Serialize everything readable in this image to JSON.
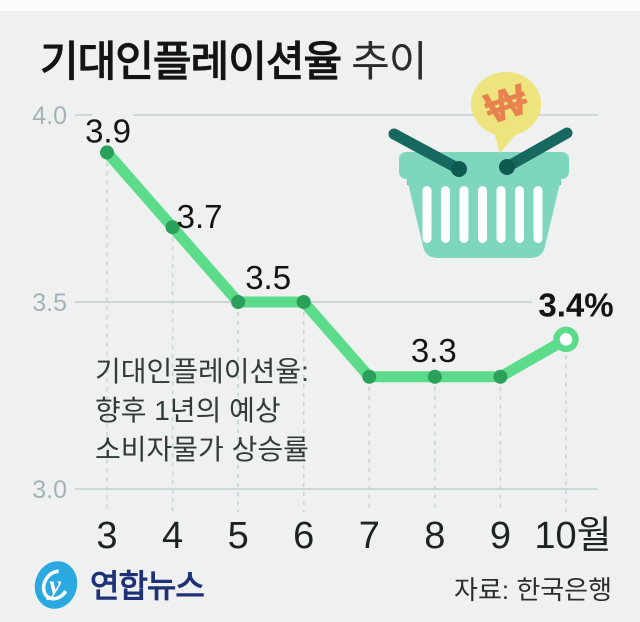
{
  "title": {
    "bold": "기대인플레이션율",
    "light": "추이"
  },
  "chart_data": {
    "type": "line",
    "title": "기대인플레이션율 추이",
    "x": [
      "3",
      "4",
      "5",
      "6",
      "7",
      "8",
      "9",
      "10월"
    ],
    "xlabel": "월",
    "ylabel": "%",
    "series": [
      {
        "name": "기대인플레이션율",
        "values": [
          3.9,
          3.7,
          3.5,
          3.5,
          3.3,
          3.3,
          3.3,
          3.4
        ]
      }
    ],
    "point_labels": [
      "3.9",
      "3.7",
      "3.5",
      "",
      "",
      "3.3",
      "",
      "3.4%"
    ],
    "yticks": [
      "4.0",
      "3.5",
      "3.0"
    ],
    "ylim": [
      3.0,
      4.0
    ],
    "grid": "horizontal solid lines + vertical dashed drop lines per point",
    "legend": "none",
    "colors": {
      "line": "#5cdb8b",
      "dot": "#2aa05a",
      "grid": "#c2cdd0",
      "tick_label": "#a3b3b8",
      "dashed": "#c7d5d8"
    },
    "annotation": {
      "lines": [
        "기대인플레이션율:",
        "향후 1년의 예상",
        "소비자물가 상승률"
      ]
    }
  },
  "illustration": {
    "name": "shopping-basket-with-won-speech-bubble",
    "bubble_symbol": "₩",
    "colors": {
      "basket": "#7ed6be",
      "handle": "#17685e",
      "bubble": "#ede47e",
      "won": "#e8824f"
    }
  },
  "footer": {
    "logo_text": "연합뉴스",
    "logo_color": "#29a9e0",
    "source": "자료: 한국은행"
  }
}
